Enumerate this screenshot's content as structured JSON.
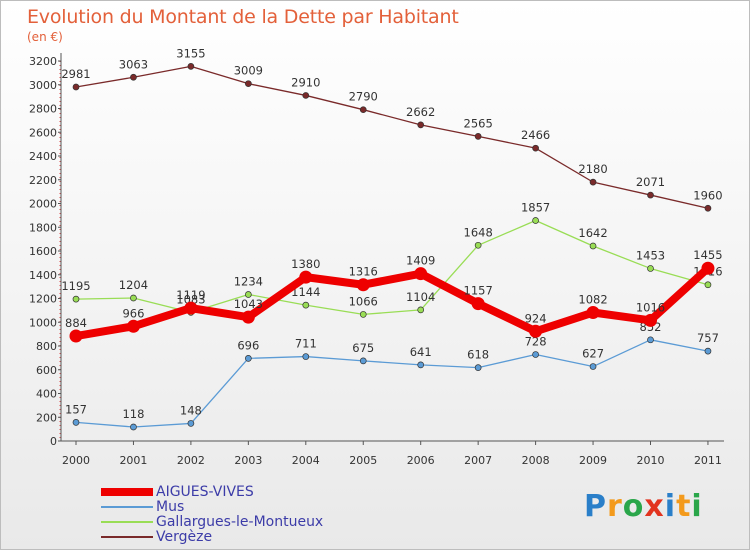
{
  "title": "Evolution du Montant de la Dette par Habitant",
  "subtitle": "(en €)",
  "logo": {
    "text": "Proxiti",
    "colors": [
      "#2a7fc9",
      "#f39a1c",
      "#2aa64a",
      "#e2341f",
      "#2a7fc9",
      "#f39a1c",
      "#2aa64a"
    ]
  },
  "chart_data": {
    "type": "line",
    "title": "Evolution du Montant de la Dette par Habitant",
    "ylabel": "(en €)",
    "x": [
      "2000",
      "2001",
      "2002",
      "2003",
      "2004",
      "2005",
      "2006",
      "2007",
      "2008",
      "2009",
      "2010",
      "2011"
    ],
    "ylim": [
      0,
      3200
    ],
    "yticks": [
      0,
      200,
      400,
      600,
      800,
      1000,
      1200,
      1400,
      1600,
      1800,
      2000,
      2200,
      2400,
      2600,
      2800,
      3000,
      3200
    ],
    "grid": false,
    "legend_position": "bottom-left",
    "series": [
      {
        "name": "AIGUES-VIVES",
        "color": "#ee0000",
        "values": [
          884,
          966,
          1119,
          1043,
          1380,
          1316,
          1409,
          1157,
          924,
          1082,
          1016,
          1455
        ]
      },
      {
        "name": "Mus",
        "color": "#5b9bd5",
        "values": [
          157,
          118,
          148,
          696,
          711,
          675,
          641,
          618,
          728,
          627,
          852,
          757
        ]
      },
      {
        "name": "Gallargues-le-Montueux",
        "color": "#99dd55",
        "values": [
          1195,
          1204,
          1083,
          1234,
          1144,
          1066,
          1104,
          1648,
          1857,
          1642,
          1453,
          1316
        ]
      },
      {
        "name": "Vergèze",
        "color": "#7a2a2a",
        "values": [
          2981,
          3063,
          3155,
          3009,
          2910,
          2790,
          2662,
          2565,
          2466,
          2180,
          2071,
          1960
        ]
      }
    ]
  }
}
